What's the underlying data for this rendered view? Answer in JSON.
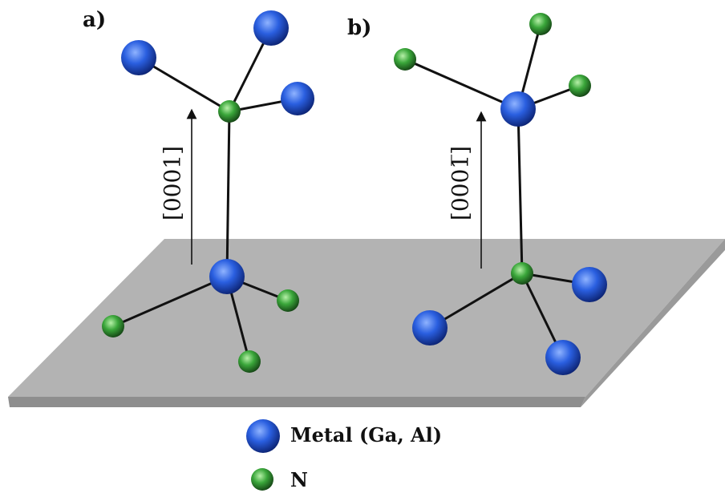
{
  "panels": [
    {
      "id": "a",
      "label": "a)",
      "direction": "[0001]",
      "top_atom": "N",
      "center_atom": "Metal"
    },
    {
      "id": "b",
      "label": "b)",
      "direction": "[000̅1]",
      "direction_display": "[0001̅]",
      "top_atom": "Metal",
      "center_atom": "N"
    }
  ],
  "legend": {
    "metal": {
      "label": "Metal (Ga, Al)",
      "color": "#1f4fd6"
    },
    "nitrogen": {
      "label": "N",
      "color": "#3aa63a"
    }
  },
  "colors": {
    "plane": "#b3b3b3",
    "plane_edge": "#8e8e8e",
    "bond": "#111111"
  }
}
